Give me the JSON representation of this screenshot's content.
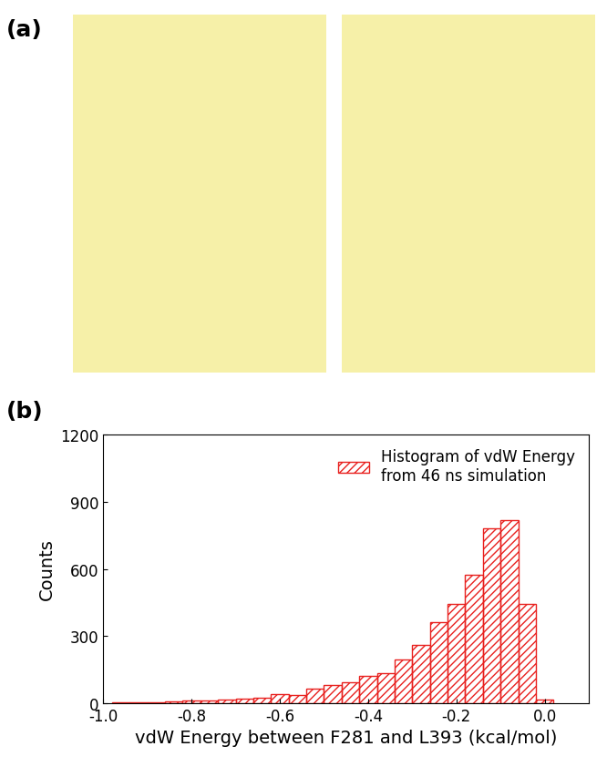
{
  "panel_labels": [
    "(a)",
    "(b)"
  ],
  "chart_data": {
    "type": "histogram",
    "x_label": "vdW Energy between F281 and L393 (kcal/mol)",
    "y_label": "Counts",
    "bins": [
      -0.98,
      -0.94,
      -0.9,
      -0.86,
      -0.82,
      -0.78,
      -0.74,
      -0.7,
      -0.66,
      -0.62,
      -0.58,
      -0.54,
      -0.5,
      -0.46,
      -0.42,
      -0.38,
      -0.34,
      -0.3,
      -0.26,
      -0.22,
      -0.18,
      -0.14,
      -0.1,
      -0.06,
      -0.02,
      0.02
    ],
    "series": [
      {
        "name": "Histogram of vdW Energy\nfrom 46 ns simulation",
        "color": "#e8201e",
        "values": [
          2,
          3,
          5,
          6,
          10,
          12,
          15,
          18,
          25,
          40,
          35,
          65,
          80,
          95,
          120,
          135,
          195,
          260,
          360,
          445,
          575,
          780,
          820,
          445,
          15
        ]
      }
    ],
    "xlim": [
      -1.0,
      0.1
    ],
    "xticks": [
      -1.0,
      -0.8,
      -0.6,
      -0.4,
      -0.2,
      0.0
    ],
    "ylim": [
      0,
      1200
    ],
    "yticks": [
      0,
      300,
      600,
      900,
      1200
    ],
    "legend": "upper right"
  }
}
